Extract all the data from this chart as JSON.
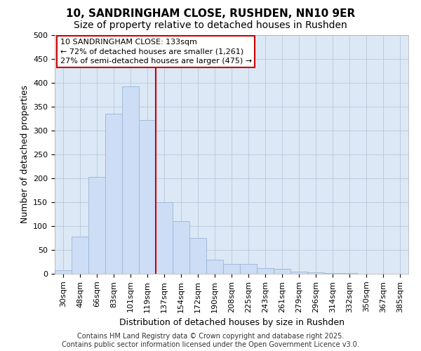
{
  "title1": "10, SANDRINGHAM CLOSE, RUSHDEN, NN10 9ER",
  "title2": "Size of property relative to detached houses in Rushden",
  "xlabel": "Distribution of detached houses by size in Rushden",
  "ylabel": "Number of detached properties",
  "categories": [
    "30sqm",
    "48sqm",
    "66sqm",
    "83sqm",
    "101sqm",
    "119sqm",
    "137sqm",
    "154sqm",
    "172sqm",
    "190sqm",
    "208sqm",
    "225sqm",
    "243sqm",
    "261sqm",
    "279sqm",
    "296sqm",
    "314sqm",
    "332sqm",
    "350sqm",
    "367sqm",
    "385sqm"
  ],
  "values": [
    8,
    78,
    203,
    335,
    393,
    322,
    150,
    110,
    75,
    30,
    20,
    20,
    12,
    11,
    5,
    3,
    2,
    1,
    0,
    0,
    0
  ],
  "bar_color": "#ccddf5",
  "bar_edge_color": "#9ab5d8",
  "grid_color": "#b8c8dc",
  "plot_bg_color": "#dce8f5",
  "fig_bg_color": "#ffffff",
  "vline_color": "#cc0000",
  "vline_x_index": 6,
  "annotation_text": "10 SANDRINGHAM CLOSE: 133sqm\n← 72% of detached houses are smaller (1,261)\n27% of semi-detached houses are larger (475) →",
  "annotation_box_color": "#ffffff",
  "annotation_border_color": "#cc0000",
  "footer": "Contains HM Land Registry data © Crown copyright and database right 2025.\nContains public sector information licensed under the Open Government Licence v3.0.",
  "ylim": [
    0,
    500
  ],
  "yticks": [
    0,
    50,
    100,
    150,
    200,
    250,
    300,
    350,
    400,
    450,
    500
  ],
  "title1_fontsize": 11,
  "title2_fontsize": 10,
  "tick_fontsize": 8,
  "ylabel_fontsize": 9,
  "xlabel_fontsize": 9,
  "annot_fontsize": 8,
  "footer_fontsize": 7
}
